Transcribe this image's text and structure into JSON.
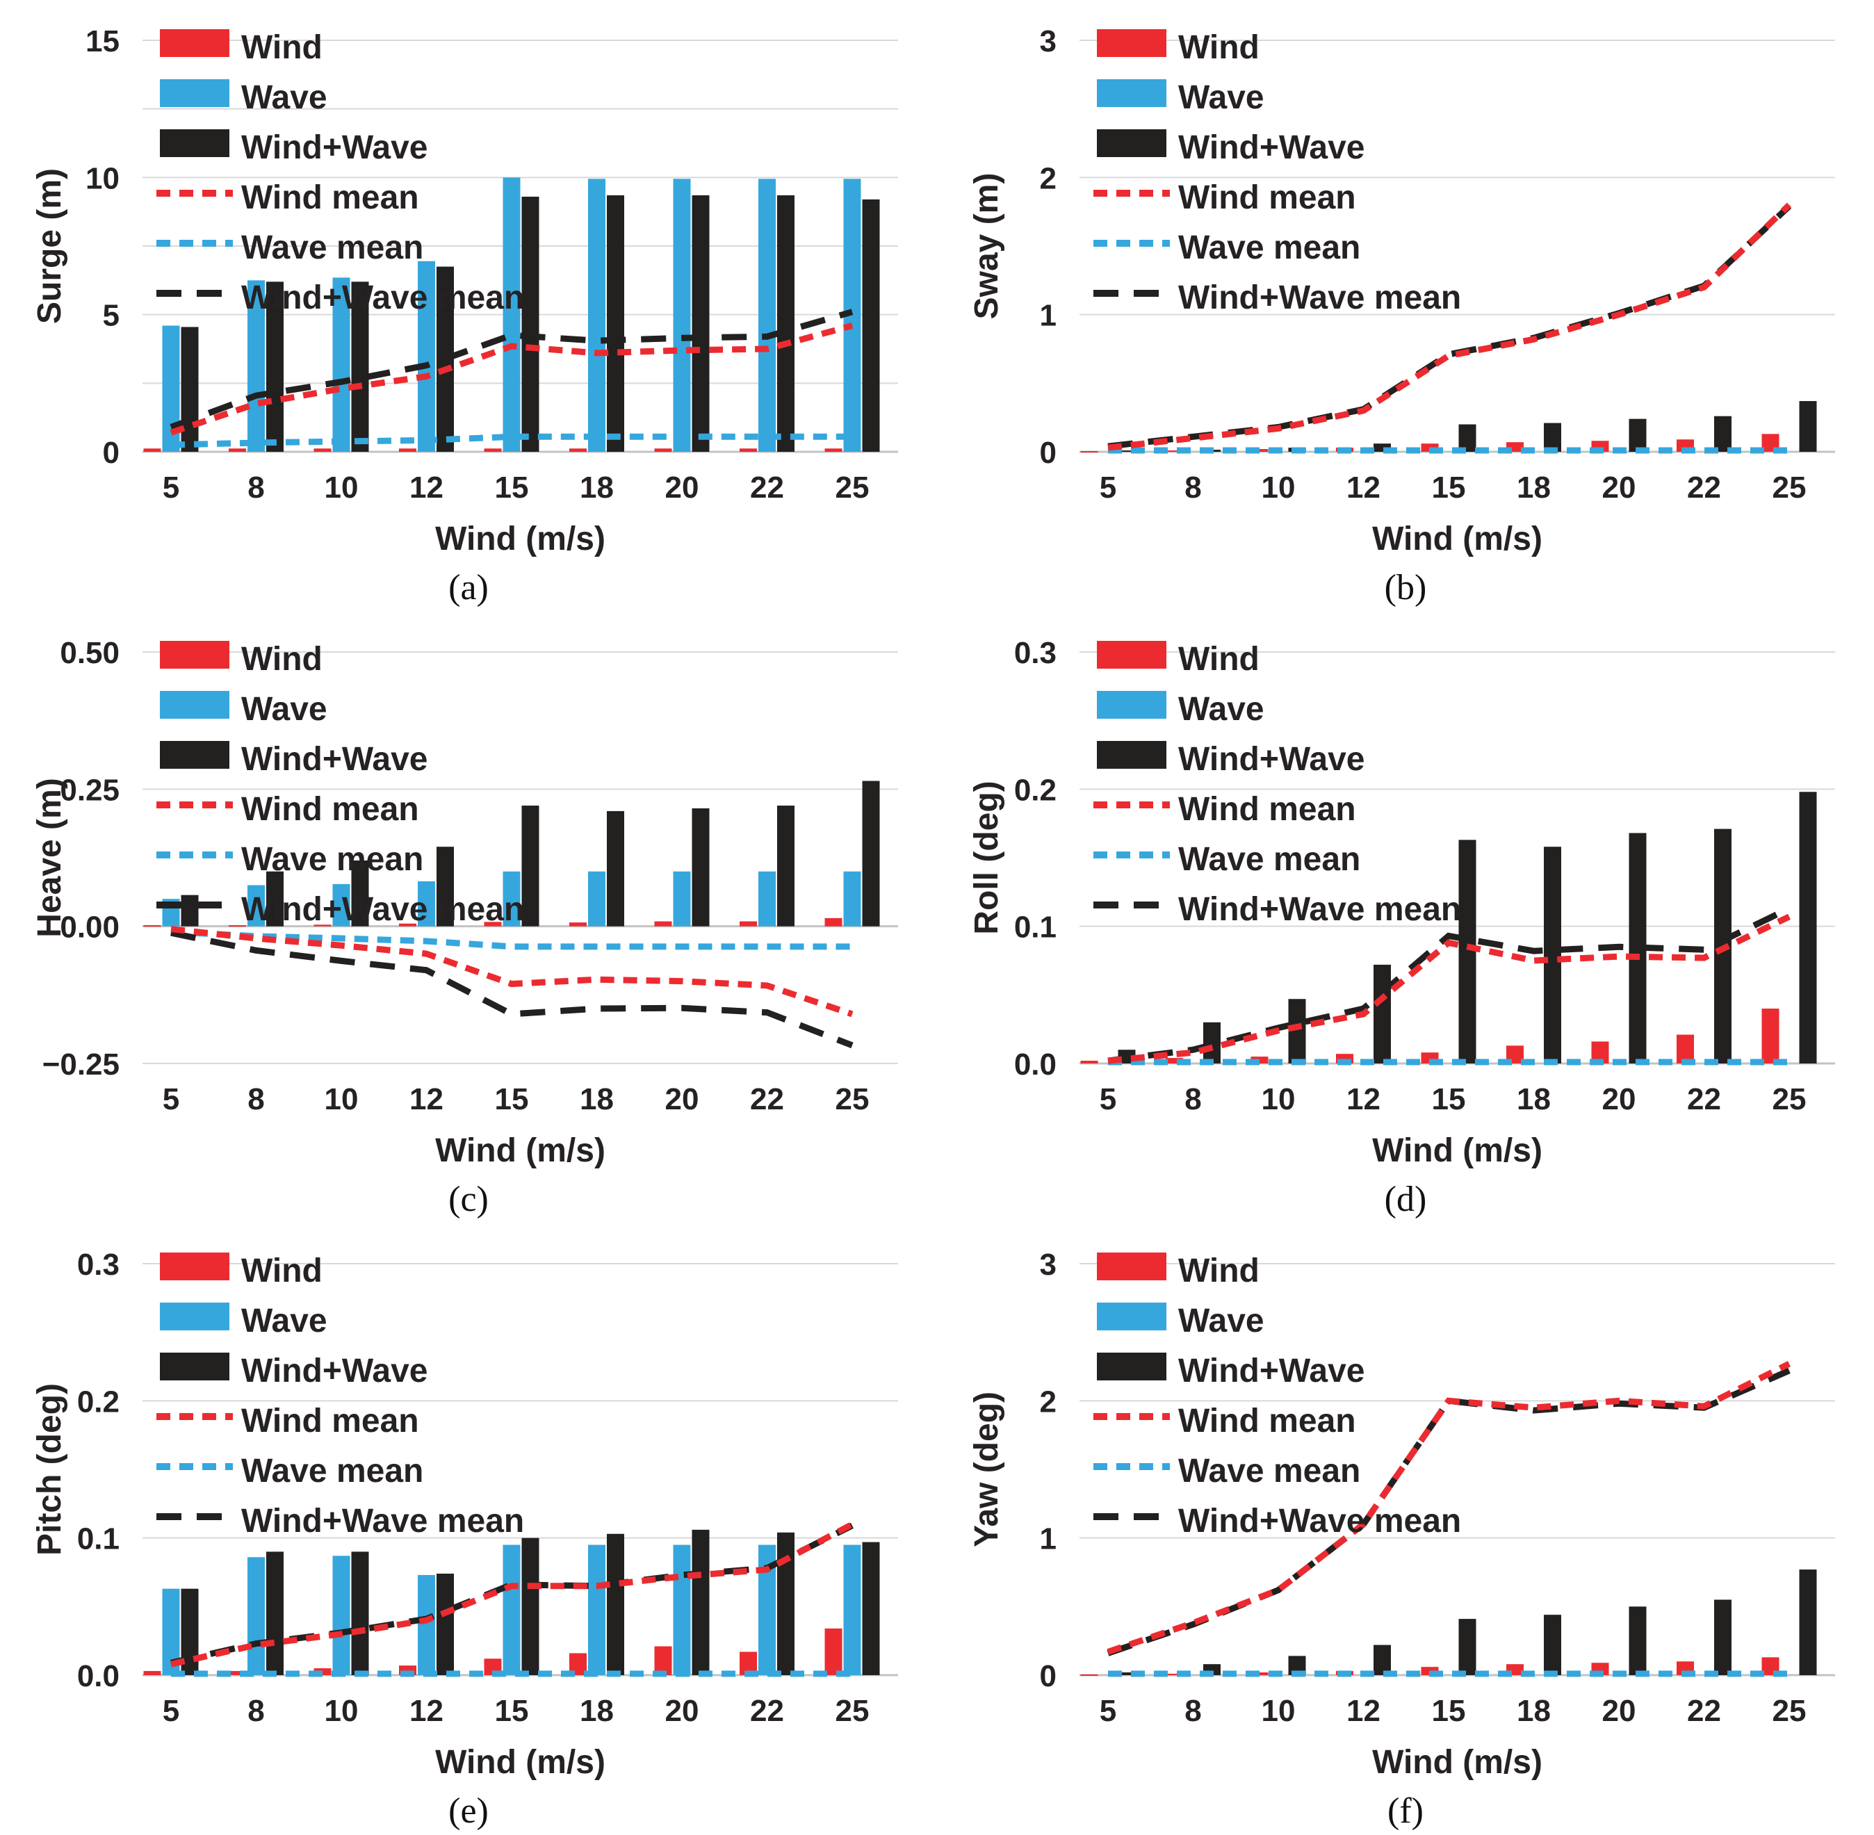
{
  "page": {
    "background": "#ffffff"
  },
  "colors": {
    "wind": "#EC2B30",
    "wave": "#35A7DD",
    "wind_wave": "#232020",
    "grid": "#D9D9D9",
    "axis": "#C3C3C3",
    "text": "#262223"
  },
  "legend": {
    "items": [
      {
        "key": "wind",
        "label": "Wind",
        "type": "bar"
      },
      {
        "key": "wave",
        "label": "Wave",
        "type": "bar"
      },
      {
        "key": "wind_wave",
        "label": "Wind+Wave",
        "type": "bar"
      },
      {
        "key": "wind_mean",
        "label": "Wind mean",
        "type": "line",
        "dash": "20 13"
      },
      {
        "key": "wave_mean",
        "label": "Wave mean",
        "type": "line",
        "dash": "20 13"
      },
      {
        "key": "wind_wave_mean",
        "label": "Wind+Wave mean",
        "type": "line",
        "dash": "36 22"
      }
    ]
  },
  "categories": [
    "5",
    "8",
    "10",
    "12",
    "15",
    "18",
    "20",
    "22",
    "25"
  ],
  "chart_data": [
    {
      "id": "a",
      "caption": "(a)",
      "type": "bar",
      "ylabel": "Surge (m)",
      "xlabel": "Wind (m/s)",
      "ylim": [
        0,
        15
      ],
      "yticks": [
        {
          "v": 0,
          "label": "0"
        },
        {
          "v": 5,
          "label": "5"
        },
        {
          "v": 10,
          "label": "10"
        },
        {
          "v": 15,
          "label": "15"
        }
      ],
      "grid": [
        2.5,
        5,
        7.5,
        10,
        12.5,
        15
      ],
      "x": [
        5,
        8,
        10,
        12,
        15,
        18,
        20,
        22,
        25
      ],
      "bars": {
        "wind": [
          0.12,
          0.12,
          0.12,
          0.12,
          0.12,
          0.12,
          0.12,
          0.12,
          0.12
        ],
        "wave": [
          4.6,
          6.25,
          6.35,
          6.95,
          10.0,
          9.95,
          9.95,
          9.95,
          9.95
        ],
        "wind_wave": [
          4.55,
          6.2,
          6.2,
          6.75,
          9.3,
          9.35,
          9.35,
          9.35,
          9.2
        ]
      },
      "lines": {
        "wind_mean": [
          0.7,
          1.75,
          2.3,
          2.75,
          3.85,
          3.6,
          3.7,
          3.75,
          4.6
        ],
        "wave_mean": [
          0.25,
          0.33,
          0.38,
          0.42,
          0.55,
          0.55,
          0.55,
          0.55,
          0.55
        ],
        "wind_wave_mean": [
          0.9,
          2.05,
          2.55,
          3.15,
          4.25,
          4.05,
          4.15,
          4.2,
          5.1
        ]
      }
    },
    {
      "id": "b",
      "caption": "(b)",
      "type": "bar",
      "ylabel": "Sway (m)",
      "xlabel": "Wind (m/s)",
      "ylim": [
        0,
        3
      ],
      "yticks": [
        {
          "v": 0,
          "label": "0"
        },
        {
          "v": 1,
          "label": "1"
        },
        {
          "v": 2,
          "label": "2"
        },
        {
          "v": 3,
          "label": "3"
        }
      ],
      "grid": [
        1,
        2,
        3
      ],
      "x": [
        5,
        8,
        10,
        12,
        15,
        18,
        20,
        22,
        25
      ],
      "bars": {
        "wind": [
          0.005,
          0.01,
          0.02,
          0.03,
          0.06,
          0.07,
          0.08,
          0.09,
          0.13
        ],
        "wave": [
          0,
          0,
          0,
          0,
          0,
          0,
          0,
          0,
          0
        ],
        "wind_wave": [
          0.01,
          0.015,
          0.03,
          0.06,
          0.2,
          0.21,
          0.24,
          0.26,
          0.37
        ]
      },
      "lines": {
        "wind_mean": [
          0.03,
          0.1,
          0.17,
          0.3,
          0.7,
          0.82,
          1.0,
          1.2,
          1.8
        ],
        "wave_mean": [
          0.01,
          0.01,
          0.01,
          0.01,
          0.01,
          0.01,
          0.01,
          0.01,
          0.01
        ],
        "wind_wave_mean": [
          0.04,
          0.11,
          0.18,
          0.31,
          0.71,
          0.83,
          1.01,
          1.21,
          1.79
        ]
      }
    },
    {
      "id": "c",
      "caption": "(c)",
      "type": "bar",
      "ylabel": "Heave (m)",
      "xlabel": "Wind (m/s)",
      "ylim": [
        -0.25,
        0.5
      ],
      "yticks": [
        {
          "v": -0.25,
          "label": "−0.25"
        },
        {
          "v": 0,
          "label": "0.00"
        },
        {
          "v": 0.25,
          "label": "0.25"
        },
        {
          "v": 0.5,
          "label": "0.50"
        }
      ],
      "grid": [
        -0.25,
        0.25,
        0.5
      ],
      "x": [
        5,
        8,
        10,
        12,
        15,
        18,
        20,
        22,
        25
      ],
      "bars": {
        "wind": [
          0.002,
          0.002,
          0.003,
          0.005,
          0.008,
          0.007,
          0.009,
          0.009,
          0.015
        ],
        "wave": [
          0.05,
          0.075,
          0.077,
          0.082,
          0.1,
          0.1,
          0.1,
          0.1,
          0.1
        ],
        "wind_wave": [
          0.057,
          0.1,
          0.12,
          0.145,
          0.22,
          0.21,
          0.215,
          0.22,
          0.265
        ]
      },
      "lines": {
        "wind_mean": [
          -0.005,
          -0.022,
          -0.035,
          -0.05,
          -0.105,
          -0.097,
          -0.1,
          -0.108,
          -0.16
        ],
        "wave_mean": [
          -0.01,
          -0.018,
          -0.022,
          -0.027,
          -0.037,
          -0.037,
          -0.037,
          -0.037,
          -0.037
        ],
        "wind_wave_mean": [
          -0.012,
          -0.044,
          -0.063,
          -0.08,
          -0.16,
          -0.15,
          -0.149,
          -0.157,
          -0.217
        ]
      }
    },
    {
      "id": "d",
      "caption": "(d)",
      "type": "bar",
      "ylabel": "Roll (deg)",
      "xlabel": "Wind (m/s)",
      "ylim": [
        0,
        0.3
      ],
      "yticks": [
        {
          "v": 0,
          "label": "0.0"
        },
        {
          "v": 0.1,
          "label": "0.1"
        },
        {
          "v": 0.2,
          "label": "0.2"
        },
        {
          "v": 0.3,
          "label": "0.3"
        }
      ],
      "grid": [
        0.1,
        0.2,
        0.3
      ],
      "x": [
        5,
        8,
        10,
        12,
        15,
        18,
        20,
        22,
        25
      ],
      "bars": {
        "wind": [
          0.002,
          0.004,
          0.005,
          0.007,
          0.008,
          0.013,
          0.016,
          0.021,
          0.04
        ],
        "wave": [
          0,
          0,
          0,
          0,
          0,
          0,
          0,
          0,
          0
        ],
        "wind_wave": [
          0.01,
          0.03,
          0.047,
          0.072,
          0.163,
          0.158,
          0.168,
          0.171,
          0.198
        ]
      },
      "lines": {
        "wind_mean": [
          0.002,
          0.008,
          0.024,
          0.036,
          0.088,
          0.075,
          0.078,
          0.077,
          0.107
        ],
        "wave_mean": [
          0.001,
          0.001,
          0.001,
          0.001,
          0.001,
          0.001,
          0.001,
          0.001,
          0.001
        ],
        "wind_wave_mean": [
          0.002,
          0.01,
          0.026,
          0.04,
          0.093,
          0.082,
          0.085,
          0.083,
          0.113
        ]
      }
    },
    {
      "id": "e",
      "caption": "(e)",
      "type": "bar",
      "ylabel": "Pitch (deg)",
      "xlabel": "Wind (m/s)",
      "ylim": [
        0,
        0.3
      ],
      "yticks": [
        {
          "v": 0,
          "label": "0.0"
        },
        {
          "v": 0.1,
          "label": "0.1"
        },
        {
          "v": 0.2,
          "label": "0.2"
        },
        {
          "v": 0.3,
          "label": "0.3"
        }
      ],
      "grid": [
        0.1,
        0.2,
        0.3
      ],
      "x": [
        5,
        8,
        10,
        12,
        15,
        18,
        20,
        22,
        25
      ],
      "bars": {
        "wind": [
          0.003,
          0.003,
          0.005,
          0.007,
          0.012,
          0.016,
          0.021,
          0.017,
          0.034
        ],
        "wave": [
          0.063,
          0.086,
          0.087,
          0.073,
          0.095,
          0.095,
          0.095,
          0.095,
          0.095
        ],
        "wind_wave": [
          0.063,
          0.09,
          0.09,
          0.074,
          0.1,
          0.103,
          0.106,
          0.104,
          0.097
        ]
      },
      "lines": {
        "wind_mean": [
          0.008,
          0.022,
          0.03,
          0.04,
          0.065,
          0.065,
          0.072,
          0.077,
          0.11
        ],
        "wave_mean": [
          0.001,
          0.001,
          0.001,
          0.001,
          0.001,
          0.001,
          0.001,
          0.001,
          0.001
        ],
        "wind_wave_mean": [
          0.009,
          0.023,
          0.031,
          0.041,
          0.066,
          0.065,
          0.073,
          0.078,
          0.109
        ]
      }
    },
    {
      "id": "f",
      "caption": "(f)",
      "type": "bar",
      "ylabel": "Yaw (deg)",
      "xlabel": "Wind (m/s)",
      "ylim": [
        0,
        3
      ],
      "yticks": [
        {
          "v": 0,
          "label": "0"
        },
        {
          "v": 1,
          "label": "1"
        },
        {
          "v": 2,
          "label": "2"
        },
        {
          "v": 3,
          "label": "3"
        }
      ],
      "grid": [
        1,
        2,
        3
      ],
      "x": [
        5,
        8,
        10,
        12,
        15,
        18,
        20,
        22,
        25
      ],
      "bars": {
        "wind": [
          0.005,
          0.01,
          0.02,
          0.03,
          0.06,
          0.08,
          0.09,
          0.1,
          0.13
        ],
        "wave": [
          0,
          0,
          0,
          0,
          0,
          0,
          0,
          0,
          0
        ],
        "wind_wave": [
          0.02,
          0.08,
          0.14,
          0.22,
          0.41,
          0.44,
          0.5,
          0.55,
          0.77
        ]
      },
      "lines": {
        "wind_mean": [
          0.17,
          0.38,
          0.62,
          1.1,
          2.0,
          1.95,
          2.0,
          1.96,
          2.27
        ],
        "wave_mean": [
          0.01,
          0.01,
          0.01,
          0.01,
          0.01,
          0.01,
          0.01,
          0.01,
          0.01
        ],
        "wind_wave_mean": [
          0.16,
          0.37,
          0.62,
          1.1,
          2.0,
          1.93,
          1.98,
          1.95,
          2.22
        ]
      }
    }
  ]
}
